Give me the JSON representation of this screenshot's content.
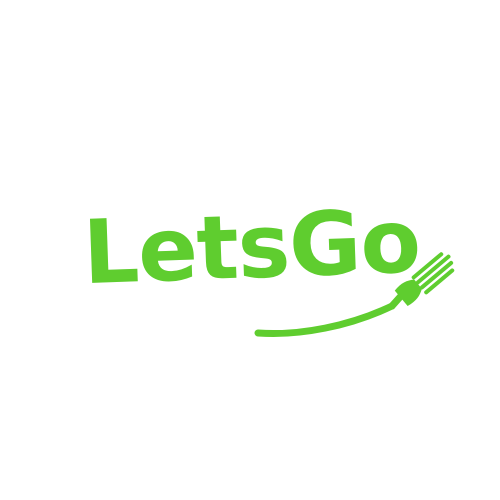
{
  "brand": {
    "name": "LetsGo",
    "accent_color": "#5fcd2f",
    "background_color": "#ffffff"
  },
  "icons": [
    "fork-icon",
    "swoosh-line"
  ]
}
